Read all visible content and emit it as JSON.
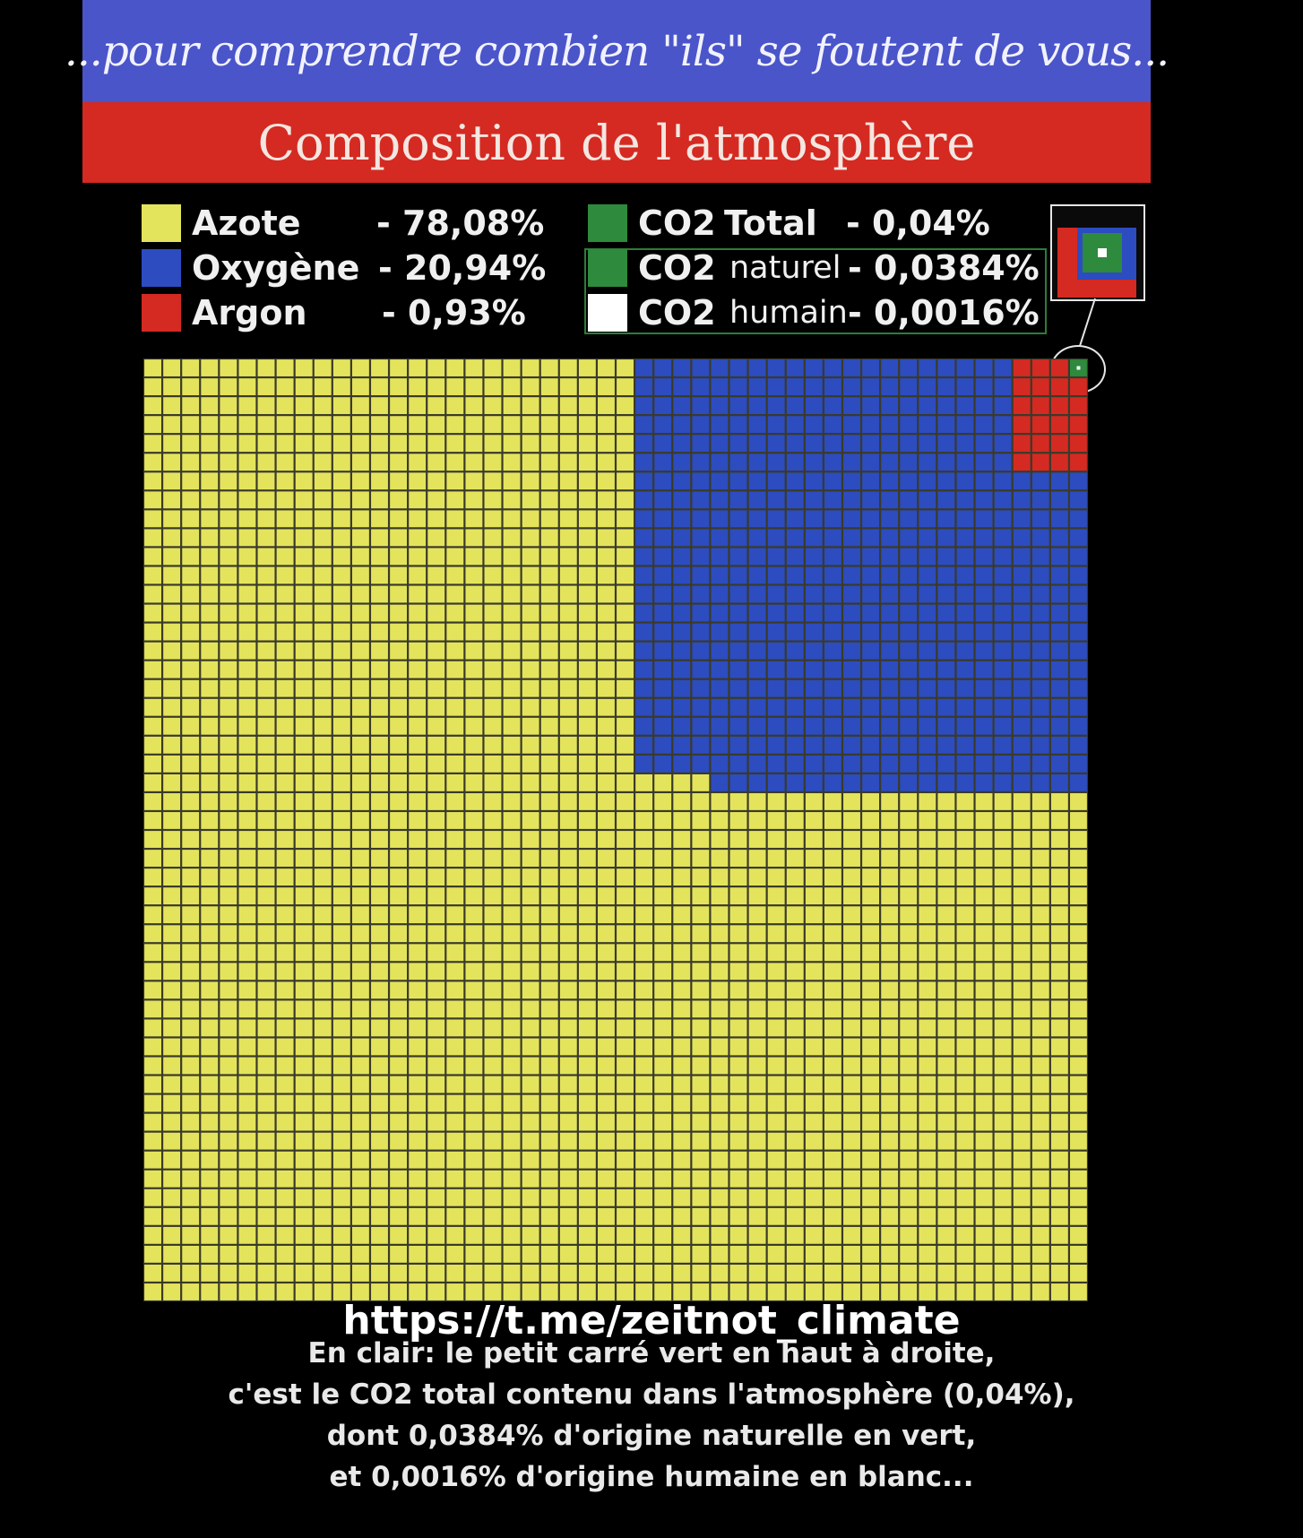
{
  "header": {
    "tagline": "...pour comprendre combien \"ils\" se foutent de vous...",
    "title": "Composition de l'atmosphère"
  },
  "legend": {
    "gases": [
      {
        "name": "Azote",
        "percent": "- 78,08%",
        "color": "#e4e45c"
      },
      {
        "name": "Oxygène",
        "percent": "- 20,94%",
        "color": "#2c4cc0"
      },
      {
        "name": "Argon",
        "percent": "- 0,93%",
        "color": "#d42a22"
      }
    ],
    "co2": [
      {
        "name": "CO2",
        "qualifier": "Total",
        "percent": "- 0,04%",
        "color": "#2e8a3c"
      },
      {
        "name": "CO2",
        "qualifier": "naturel",
        "percent": "- 0,0384%",
        "color": "#2e8a3c"
      },
      {
        "name": "CO2",
        "qualifier": "humain",
        "percent": "- 0,0016%",
        "color": "#ffffff"
      }
    ]
  },
  "chart_data": {
    "type": "waffle",
    "grid_size": 50,
    "series": [
      {
        "name": "Azote",
        "value": 78.08,
        "color": "#e4e45c"
      },
      {
        "name": "Oxygène",
        "value": 20.94,
        "color": "#2c4cc0"
      },
      {
        "name": "Argon",
        "value": 0.93,
        "color": "#d42a22"
      },
      {
        "name": "CO2 Total",
        "value": 0.04,
        "color": "#2e8a3c"
      },
      {
        "name": "CO2 naturel",
        "value": 0.0384,
        "color": "#2e8a3c"
      },
      {
        "name": "CO2 humain",
        "value": 0.0016,
        "color": "#ffffff"
      }
    ],
    "grid_line_color": "#3a3a2a"
  },
  "footer": {
    "url": "https://t.me/zeitnot_climate",
    "caption_lines": [
      "En clair: le petit carré vert en haut à droite,",
      "c'est le CO2 total contenu dans l'atmosphère (0,04%),",
      "dont 0,0384% d'origine naturelle en vert,",
      "et 0,0016% d'origine humaine en blanc..."
    ]
  }
}
